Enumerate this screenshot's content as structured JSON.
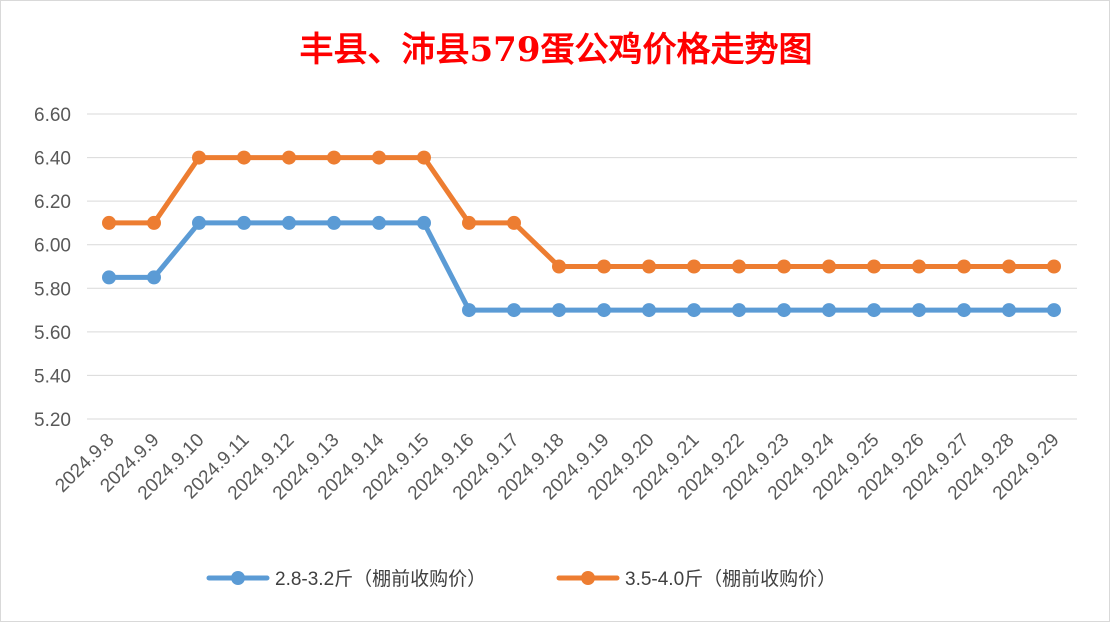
{
  "chart_data": {
    "type": "line",
    "title": "丰县、沛县579蛋公鸡价格走势图",
    "categories": [
      "2024.9.8",
      "2024.9.9",
      "2024.9.10",
      "2024.9.11",
      "2024.9.12",
      "2024.9.13",
      "2024.9.14",
      "2024.9.15",
      "2024.9.16",
      "2024.9.17",
      "2024.9.18",
      "2024.9.19",
      "2024.9.20",
      "2024.9.21",
      "2024.9.22",
      "2024.9.23",
      "2024.9.24",
      "2024.9.25",
      "2024.9.26",
      "2024.9.27",
      "2024.9.28",
      "2024.9.29"
    ],
    "series": [
      {
        "name": "2.8-3.2斤（棚前收购价）",
        "color": "#5b9bd5",
        "values": [
          5.85,
          5.85,
          6.1,
          6.1,
          6.1,
          6.1,
          6.1,
          6.1,
          5.7,
          5.7,
          5.7,
          5.7,
          5.7,
          5.7,
          5.7,
          5.7,
          5.7,
          5.7,
          5.7,
          5.7,
          5.7,
          5.7
        ]
      },
      {
        "name": "3.5-4.0斤（棚前收购价）",
        "color": "#ed7d31",
        "values": [
          6.1,
          6.1,
          6.4,
          6.4,
          6.4,
          6.4,
          6.4,
          6.4,
          6.1,
          6.1,
          5.9,
          5.9,
          5.9,
          5.9,
          5.9,
          5.9,
          5.9,
          5.9,
          5.9,
          5.9,
          5.9,
          5.9
        ]
      }
    ],
    "yticks": [
      "6.60",
      "6.40",
      "6.20",
      "6.00",
      "5.80",
      "5.60",
      "5.40",
      "5.20"
    ],
    "ylim": [
      5.2,
      6.6
    ],
    "grid": true,
    "legend_position": "bottom"
  }
}
